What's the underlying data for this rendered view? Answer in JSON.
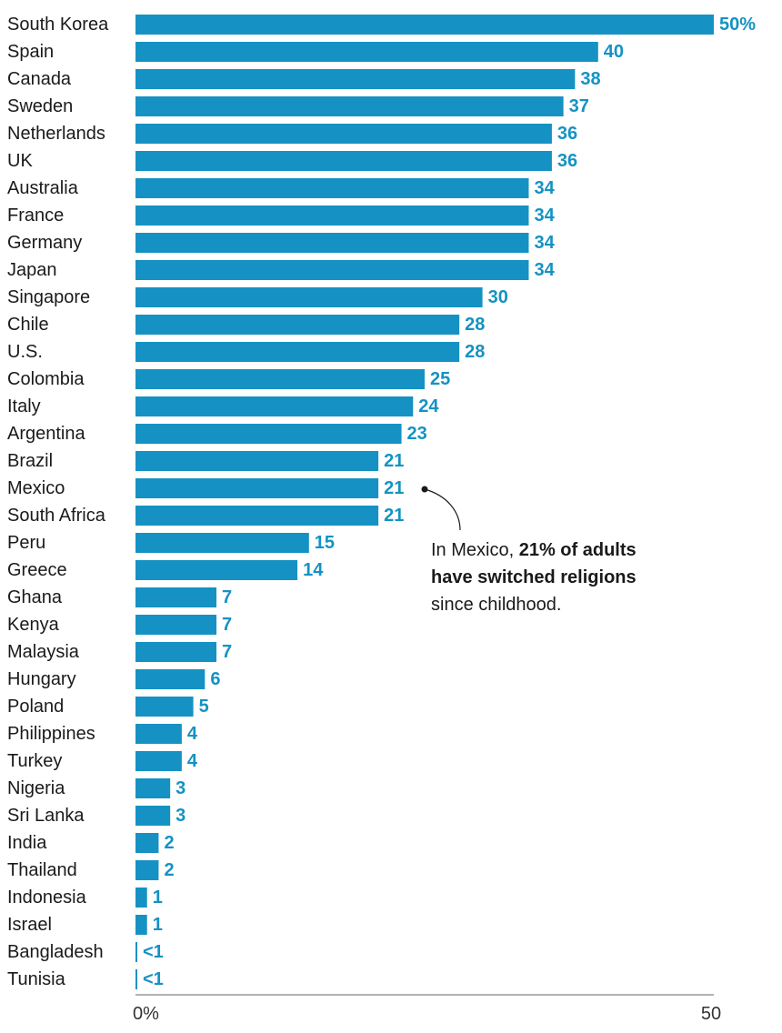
{
  "colors": {
    "bar": "#1592c3",
    "value_text": "#1592c3",
    "axis": "#666666"
  },
  "chart_data": {
    "type": "bar",
    "orientation": "horizontal",
    "categories": [
      "South Korea",
      "Spain",
      "Canada",
      "Sweden",
      "Netherlands",
      "UK",
      "Australia",
      "France",
      "Germany",
      "Japan",
      "Singapore",
      "Chile",
      "U.S.",
      "Colombia",
      "Italy",
      "Argentina",
      "Brazil",
      "Mexico",
      "South Africa",
      "Peru",
      "Greece",
      "Ghana",
      "Kenya",
      "Malaysia",
      "Hungary",
      "Poland",
      "Philippines",
      "Turkey",
      "Nigeria",
      "Sri Lanka",
      "India",
      "Thailand",
      "Indonesia",
      "Israel",
      "Bangladesh",
      "Tunisia"
    ],
    "values": [
      50,
      40,
      38,
      37,
      36,
      36,
      34,
      34,
      34,
      34,
      30,
      28,
      28,
      25,
      24,
      23,
      21,
      21,
      21,
      15,
      14,
      7,
      7,
      7,
      6,
      5,
      4,
      4,
      3,
      3,
      2,
      2,
      1,
      1,
      0.1,
      0.1
    ],
    "value_labels": [
      "50%",
      "40",
      "38",
      "37",
      "36",
      "36",
      "34",
      "34",
      "34",
      "34",
      "30",
      "28",
      "28",
      "25",
      "24",
      "23",
      "21",
      "21",
      "21",
      "15",
      "14",
      "7",
      "7",
      "7",
      "6",
      "5",
      "4",
      "4",
      "3",
      "3",
      "2",
      "2",
      "1",
      "1",
      "<1",
      "<1"
    ],
    "xlim": [
      0,
      50
    ],
    "xticks": [
      "0%",
      "50"
    ],
    "title": "",
    "xlabel": "",
    "ylabel": "",
    "grid": false
  },
  "annotation": {
    "prefix": "In Mexico, ",
    "bold": "21% of adults have switched religions",
    "suffix": " since childhood."
  }
}
